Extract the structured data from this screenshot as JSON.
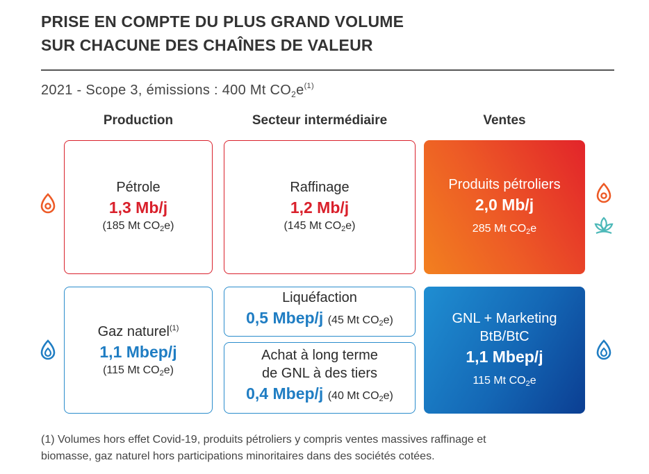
{
  "title": {
    "line1": "PRISE EN COMPTE DU PLUS GRAND VOLUME",
    "line2": "SUR CHACUNE DES CHAÎNES DE VALEUR"
  },
  "subtitle": {
    "text": "2021 - Scope 3, émissions : 400 Mt CO",
    "sub": "2",
    "suffix": "e",
    "note": "(1)"
  },
  "columns": {
    "production": "Production",
    "intermediate": "Secteur intermédiaire",
    "sales": "Ventes"
  },
  "co2": {
    "unit": "Mt CO",
    "sub": "2",
    "suffix": "e"
  },
  "oil": {
    "production": {
      "label": "Pétrole",
      "value": "1,3 Mb/j",
      "emissions_open": "(185 Mt CO",
      "emissions_close": "e)"
    },
    "intermediate": {
      "label": "Raffinage",
      "value": "1,2 Mb/j",
      "emissions_open": "(145 Mt CO",
      "emissions_close": "e)"
    },
    "sales": {
      "label": "Produits pétroliers",
      "value": "2,0 Mb/j",
      "emissions": "285 Mt CO",
      "emissions_close": "e"
    }
  },
  "gas": {
    "production": {
      "label": "Gaz naturel",
      "note": "(1)",
      "value": "1,1 Mbep/j",
      "emissions_open": "(115 Mt CO",
      "emissions_close": "e)"
    },
    "liquefaction": {
      "label": "Liquéfaction",
      "value": "0,5 Mbep/j",
      "emissions_open": "(45 Mt CO",
      "emissions_close": "e)"
    },
    "lng_purchase": {
      "label_line1": "Achat à long terme",
      "label_line2": "de GNL à des tiers",
      "value": "0,4 Mbep/j",
      "emissions_open": "(40 Mt CO",
      "emissions_close": "e)"
    },
    "sales": {
      "label_line1": "GNL + Marketing",
      "label_line2": "BtB/BtC",
      "value": "1,1 Mbep/j",
      "emissions": "115 Mt CO",
      "emissions_close": "e"
    }
  },
  "icons": {
    "oil_left": "oil-flame-icon",
    "oil_right": "oil-flame-icon",
    "biomass_right": "biomass-leaf-icon",
    "gas_left": "gas-flame-icon",
    "gas_right": "gas-flame-icon"
  },
  "colors": {
    "red": "#d9202b",
    "orange": "#f2801f",
    "blue": "#1f7dc3",
    "teal": "#4cb8b8"
  },
  "footnote": {
    "line1": "(1) Volumes hors effet Covid-19, produits pétroliers y compris ventes massives raffinage et",
    "line2": "biomasse, gaz naturel hors participations minoritaires dans des sociétés cotées."
  }
}
